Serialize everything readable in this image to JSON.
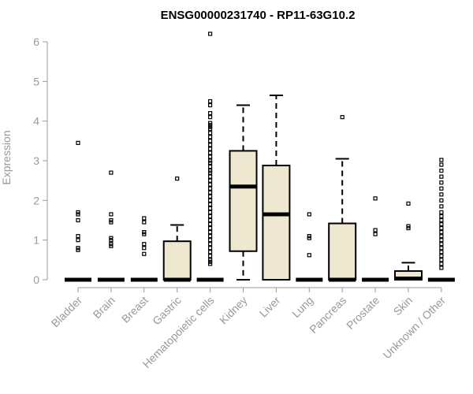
{
  "chart_data": {
    "type": "boxplot",
    "title": "ENSG00000231740 - RP11-63G10.2",
    "ylabel": "Expression",
    "ylim": [
      0,
      6
    ],
    "yticks": [
      0,
      1,
      2,
      3,
      4,
      5,
      6
    ],
    "box_fill": "#EEE8D0",
    "categories": [
      "Bladder",
      "Brain",
      "Breast",
      "Gastric",
      "Hematopoietic cells",
      "Kidney",
      "Liver",
      "Lung",
      "Pancreas",
      "Prostate",
      "Skin",
      "Unknown / Other"
    ],
    "boxes": [
      {
        "q1": 0,
        "median": 0,
        "q3": 0,
        "whisker_low": 0,
        "whisker_high": 0,
        "outliers": [
          3.45,
          1.7,
          1.65,
          1.5,
          1.1,
          1.0,
          0.8,
          0.75
        ]
      },
      {
        "q1": 0,
        "median": 0,
        "q3": 0,
        "whisker_low": 0,
        "whisker_high": 0,
        "outliers": [
          2.7,
          1.65,
          1.5,
          1.45,
          1.05,
          1.0,
          0.9,
          0.85
        ]
      },
      {
        "q1": 0,
        "median": 0,
        "q3": 0,
        "whisker_low": 0,
        "whisker_high": 0,
        "outliers": [
          1.55,
          1.45,
          1.2,
          1.15,
          0.9,
          0.8,
          0.65
        ]
      },
      {
        "q1": 0,
        "median": 0,
        "q3": 0.97,
        "whisker_low": 0,
        "whisker_high": 1.38,
        "outliers": [
          2.55
        ]
      },
      {
        "q1": 0,
        "median": 0,
        "q3": 0,
        "whisker_low": 0,
        "whisker_high": 0,
        "outliers": [
          6.2,
          4.5,
          4.4,
          4.2,
          4.1,
          3.95,
          3.9,
          3.85,
          3.8,
          3.7,
          3.6,
          3.5,
          3.4,
          3.3,
          3.2,
          3.1,
          3.0,
          2.95,
          2.85,
          2.75,
          2.7,
          2.6,
          2.5,
          2.4,
          2.3,
          2.2,
          2.1,
          2.0,
          1.9,
          1.8,
          1.7,
          1.6,
          1.5,
          1.4,
          1.3,
          1.2,
          1.1,
          1.0,
          0.9,
          0.8,
          0.7,
          0.6,
          0.5,
          0.45,
          0.4
        ]
      },
      {
        "q1": 0.72,
        "median": 2.35,
        "q3": 3.25,
        "whisker_low": 0,
        "whisker_high": 4.4,
        "outliers": []
      },
      {
        "q1": 0,
        "median": 1.65,
        "q3": 2.88,
        "whisker_low": 0,
        "whisker_high": 4.65,
        "outliers": []
      },
      {
        "q1": 0,
        "median": 0,
        "q3": 0,
        "whisker_low": 0,
        "whisker_high": 0,
        "outliers": [
          1.65,
          1.1,
          1.05,
          0.62
        ]
      },
      {
        "q1": 0,
        "median": 0,
        "q3": 1.42,
        "whisker_low": 0,
        "whisker_high": 3.05,
        "outliers": [
          4.1
        ]
      },
      {
        "q1": 0,
        "median": 0,
        "q3": 0,
        "whisker_low": 0,
        "whisker_high": 0,
        "outliers": [
          2.05,
          1.25,
          1.15
        ]
      },
      {
        "q1": 0,
        "median": 0.03,
        "q3": 0.22,
        "whisker_low": 0,
        "whisker_high": 0.43,
        "outliers": [
          1.92,
          1.35,
          1.3
        ]
      },
      {
        "q1": 0,
        "median": 0,
        "q3": 0,
        "whisker_low": 0,
        "whisker_high": 0,
        "outliers": [
          3.02,
          2.9,
          2.75,
          2.6,
          2.45,
          2.3,
          2.15,
          2.0,
          1.85,
          1.7,
          1.6,
          1.5,
          1.4,
          1.3,
          1.2,
          1.1,
          1.0,
          0.9,
          0.8,
          0.7,
          0.6,
          0.5,
          0.4,
          0.3
        ]
      }
    ]
  }
}
